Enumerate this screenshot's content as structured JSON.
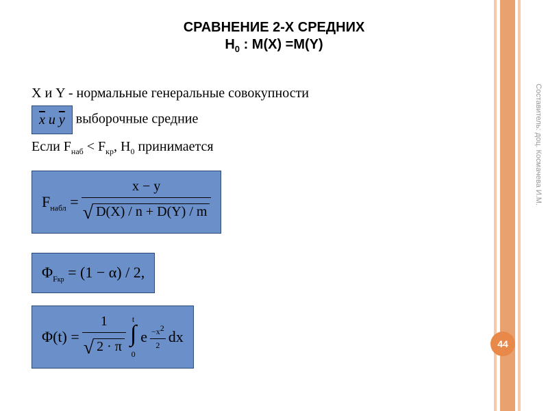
{
  "title_line1": "СРАВНЕНИЕ 2-Х СРЕДНИХ",
  "title_line2_pre": "H",
  "title_line2_sub": "0",
  "title_line2_post": " : M(X) =M(Y)",
  "line1": "X и Y  - нормальные генеральные совокупности",
  "box_xy_x": "x",
  "box_xy_and": " и ",
  "box_xy_y": "y",
  "line2_rest": " выборочные средние",
  "line3_pre": "Если     F",
  "line3_sub1": "наб",
  "line3_mid": "   < F",
  "line3_sub2": "кр",
  "line3_post": ", Н",
  "line3_sub3": "0",
  "line3_end": " принимается",
  "f1_lhs": "F",
  "f1_lhs_sub": "набл",
  "f1_eq": "  =",
  "f1_top_x": "x",
  "f1_top_minus": " − ",
  "f1_top_y": "y",
  "f1_bot": "D(X) / n + D(Y) / m",
  "f2_lhs": "Φ",
  "f2_lhs_sub1": "F",
  "f2_lhs_sub2": "кр",
  "f2_rhs": " = (1 − α) / 2,",
  "f3_lhs": "Φ(t) = ",
  "f3_frac_top": "1",
  "f3_frac_bot_inner": "2 · π",
  "f3_int_low": "0",
  "f3_int_up": "t",
  "f3_exp_e": "e",
  "f3_exp_top": "x",
  "f3_exp_top_sup": "2",
  "f3_exp_bot": "2",
  "f3_dx": " dx",
  "credit": "Составитель: доц. Космачева И.М.",
  "page": "44",
  "colors": {
    "box_bg": "#6b8fc9",
    "box_border": "#2a4a7a",
    "stripe_main": "#e8a16f",
    "stripe_light": "#f7c9a8",
    "badge": "#e8894a"
  }
}
